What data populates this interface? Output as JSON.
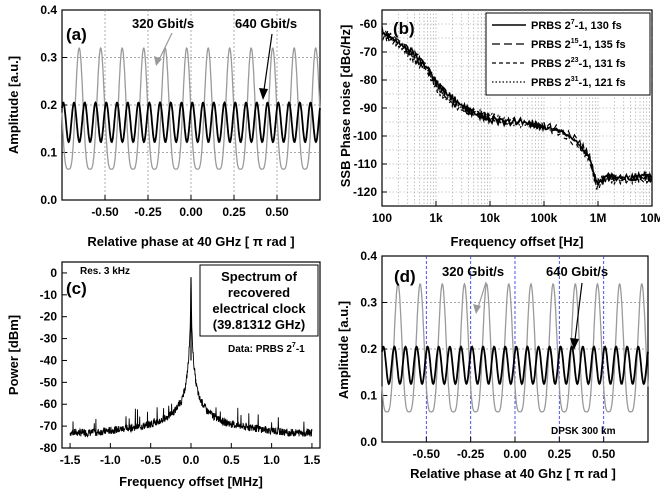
{
  "chart_data": [
    {
      "panel": "(a)",
      "type": "line",
      "xlabel": "Relative phase at 40 GHz",
      "xunit": "π rad",
      "ylabel": "Amplitude [a.u.]",
      "xlim": [
        -0.75,
        0.75
      ],
      "ylim": [
        0.0,
        0.4
      ],
      "xticks": [
        "-0.50",
        "-0.25",
        "0.00",
        "0.25",
        "0.50"
      ],
      "yticks": [
        "0.0",
        "0.1",
        "0.2",
        "0.3",
        "0.4"
      ],
      "grid": "dotted",
      "series": [
        {
          "name": "320 Gbit/s",
          "color": "#9a9a9a",
          "period": 0.125,
          "mean": 0.17,
          "peak": 0.32,
          "trough": 0.065,
          "peak_at": -0.65
        },
        {
          "name": "640 Gbit/s",
          "color": "#000000",
          "period": 0.0625,
          "mean": 0.165,
          "peak": 0.205,
          "trough": 0.122,
          "peak_at": -0.68
        }
      ],
      "annotations": [
        "320 Gbit/s",
        "640 Gbit/s"
      ]
    },
    {
      "panel": "(b)",
      "type": "line",
      "xscale": "log",
      "xlabel": "Frequency offset [Hz]",
      "ylabel": "SSB Phase noise [dBc/Hz]",
      "xlim": [
        100,
        10000000
      ],
      "ylim": [
        -125,
        -55
      ],
      "xticks": [
        "100",
        "1k",
        "10k",
        "100k",
        "1M",
        "10M"
      ],
      "yticks": [
        "-60",
        "-70",
        "-80",
        "-90",
        "-100",
        "-110",
        "-120"
      ],
      "legend_position": "top-right",
      "series": [
        {
          "name": "PRBS 2^7-1, 130 fs",
          "base": "PRBS 2",
          "exp": "7",
          "tail": "-1, 130 fs",
          "dash": "solid",
          "x": [
            100,
            150,
            250,
            400,
            700,
            1000,
            1600,
            2500,
            4000,
            7000,
            10000,
            20000,
            40000,
            70000,
            100000,
            200000,
            400000,
            700000,
            900000,
            1000000,
            1500000,
            2000000,
            4000000,
            7000000,
            10000000
          ],
          "y": [
            -63,
            -65,
            -68,
            -71,
            -76,
            -81,
            -85,
            -88,
            -91,
            -93,
            -94,
            -95,
            -95,
            -96,
            -97,
            -98,
            -102,
            -108,
            -116,
            -117,
            -114,
            -115,
            -115,
            -114,
            -115
          ]
        },
        {
          "name": "PRBS 2^15-1, 135 fs",
          "base": "PRBS 2",
          "exp": "15",
          "tail": "-1, 135 fs",
          "dash": "8,4",
          "x": [
            100,
            150,
            250,
            400,
            700,
            1000,
            1600,
            2500,
            4000,
            7000,
            10000,
            20000,
            40000,
            70000,
            100000,
            200000,
            400000,
            700000,
            900000,
            1000000,
            1500000,
            2000000,
            4000000,
            7000000,
            10000000
          ],
          "y": [
            -62,
            -64,
            -67,
            -70,
            -75,
            -80,
            -84,
            -88,
            -90,
            -92,
            -93,
            -94,
            -95,
            -96,
            -96,
            -98,
            -101,
            -107,
            -115,
            -116,
            -115,
            -114,
            -116,
            -115,
            -116
          ]
        },
        {
          "name": "PRBS 2^23-1, 131 fs",
          "base": "PRBS 2",
          "exp": "23",
          "tail": "-1, 131 fs",
          "dash": "4,3",
          "x": [
            100,
            150,
            250,
            400,
            700,
            1000,
            1600,
            2500,
            4000,
            7000,
            10000,
            20000,
            40000,
            70000,
            100000,
            200000,
            400000,
            700000,
            900000,
            1000000,
            1500000,
            2000000,
            4000000,
            7000000,
            10000000
          ],
          "y": [
            -64,
            -66,
            -69,
            -73,
            -77,
            -83,
            -87,
            -90,
            -92,
            -93,
            -94,
            -96,
            -95,
            -97,
            -97,
            -99,
            -103,
            -108,
            -117,
            -118,
            -115,
            -116,
            -115,
            -116,
            -116
          ]
        },
        {
          "name": "PRBS 2^31-1, 121 fs",
          "base": "PRBS 2",
          "exp": "31",
          "tail": "-1, 121 fs",
          "dash": "1.5,2",
          "x": [
            100,
            150,
            250,
            400,
            700,
            1000,
            1600,
            2500,
            4000,
            7000,
            10000,
            20000,
            40000,
            70000,
            100000,
            200000,
            400000,
            700000,
            900000,
            1000000,
            1500000,
            2000000,
            4000000,
            7000000,
            10000000
          ],
          "y": [
            -63,
            -65,
            -68,
            -72,
            -76,
            -82,
            -86,
            -89,
            -91,
            -92,
            -93,
            -95,
            -96,
            -96,
            -97,
            -98,
            -102,
            -107,
            -116,
            -116,
            -114,
            -115,
            -116,
            -114,
            -115
          ]
        }
      ]
    },
    {
      "panel": "(c)",
      "type": "line",
      "xlabel": "Frequency offset [MHz]",
      "ylabel": "Power [dBm]",
      "xlim": [
        -1.6,
        1.6
      ],
      "ylim": [
        -80,
        5
      ],
      "xticks": [
        "-1.5",
        "-1.0",
        "-0.5",
        "0.0",
        "0.5",
        "1.0",
        "1.5"
      ],
      "yticks": [
        "0",
        "-10",
        "-20",
        "-30",
        "-40",
        "-50",
        "-60",
        "-70",
        "-80"
      ],
      "series": [
        {
          "name": "Spectrum",
          "x": [
            -1.5,
            -1.2,
            -1.0,
            -0.8,
            -0.6,
            -0.4,
            -0.3,
            -0.2,
            -0.15,
            -0.1,
            -0.06,
            -0.03,
            -0.01,
            0.0,
            0.01,
            0.03,
            0.06,
            0.1,
            0.15,
            0.2,
            0.3,
            0.4,
            0.6,
            0.8,
            1.0,
            1.2,
            1.5
          ],
          "y": [
            -73,
            -73,
            -72,
            -71,
            -70,
            -68,
            -66,
            -63,
            -60,
            -57,
            -50,
            -40,
            -25,
            -2,
            -25,
            -40,
            -50,
            -57,
            -60,
            -63,
            -66,
            -68,
            -70,
            -71,
            -72,
            -73,
            -73
          ]
        }
      ],
      "annotations": {
        "resolution": "Res. 3 kHz",
        "box_lines": [
          "Spectrum of",
          "recovered",
          "electrical clock",
          "(39.81312 GHz)"
        ],
        "data_base": "Data: PRBS 2",
        "data_exp": "7",
        "data_tail": "-1"
      }
    },
    {
      "panel": "(d)",
      "type": "line",
      "xlabel": "Relative phase at 40 Ghz",
      "xunit": "π rad",
      "ylabel": "Amplitude [a.u.]",
      "xlim": [
        -0.75,
        0.75
      ],
      "ylim": [
        0.0,
        0.4
      ],
      "xticks": [
        "-0.50",
        "-0.25",
        "0.00",
        "0.25",
        "0.50"
      ],
      "yticks": [
        "0.0",
        "0.1",
        "0.2",
        "0.3",
        "0.4"
      ],
      "grid": "dotted",
      "vlines_color": "#3a3aff",
      "vlines_at": [
        -0.5,
        -0.25,
        0.0,
        0.25,
        0.5
      ],
      "series": [
        {
          "name": "320 Gbit/s",
          "color": "#9a9a9a",
          "period": 0.125,
          "mean": 0.18,
          "peak": 0.34,
          "trough": 0.065,
          "peak_at": -0.66
        },
        {
          "name": "640 Gbit/s",
          "color": "#000000",
          "period": 0.0625,
          "mean": 0.165,
          "peak": 0.205,
          "trough": 0.125,
          "peak_at": -0.68
        }
      ],
      "annotations": [
        "320 Gbit/s",
        "640 Gbit/s",
        "DPSK  300 km"
      ]
    }
  ]
}
